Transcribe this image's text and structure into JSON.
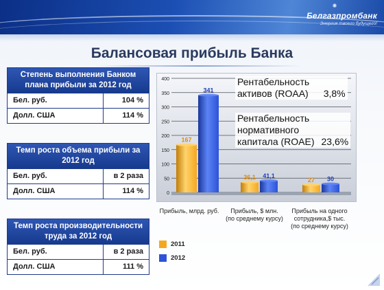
{
  "header": {
    "logo_name": "Белгазпромбанк",
    "logo_tagline": "Энергия твоего будущего!"
  },
  "title": "Балансовая прибыль Банка",
  "tables": [
    {
      "heading": "Степень выполнения Банком плана прибыли за 2012 год",
      "rows": [
        {
          "label": "Бел. руб.",
          "value": "104 %"
        },
        {
          "label": "Долл. США",
          "value": "114 %"
        }
      ]
    },
    {
      "heading": "Темп роста объема прибыли за 2012 год",
      "rows": [
        {
          "label": "Бел. руб.",
          "value": "в 2 раза"
        },
        {
          "label": "Долл. США",
          "value": "114 %"
        }
      ]
    },
    {
      "heading": "Темп роста производительности труда за 2012 год",
      "rows": [
        {
          "label": "Бел. руб.",
          "value": "в 2 раза"
        },
        {
          "label": "Долл. США",
          "value": "111 %"
        }
      ]
    }
  ],
  "annotations": {
    "roaa_line1": "Рентабельность",
    "roaa_line2": "активов (ROAA)",
    "roaa_value": "3,8%",
    "roae_line1": "Рентабельность",
    "roae_line2": "нормативного",
    "roae_line3": "капитала (ROAE)",
    "roae_value": "23,6%"
  },
  "chart_data": {
    "type": "bar",
    "title": "",
    "ylim": [
      0,
      400
    ],
    "yticks": [
      0,
      50,
      100,
      150,
      200,
      250,
      300,
      350,
      400
    ],
    "grid": true,
    "categories": [
      "Прибыль, млрд. руб.",
      "Прибыль, $ млн. (по среднему курсу)",
      "Прибыль на одного сотрудника,$ тыс. (по среднему курсу)"
    ],
    "category_lines": [
      [
        "Прибыль, млрд. руб."
      ],
      [
        "Прибыль, $ млн.",
        "(по среднему курсу)"
      ],
      [
        "Прибыль на одного",
        "сотрудника,$ тыс.",
        "(по среднему курсу)"
      ]
    ],
    "series": [
      {
        "name": "2011",
        "values": [
          167,
          36.1,
          27
        ],
        "labels": [
          "167",
          "36,1",
          "27"
        ],
        "color": "#f5a81f"
      },
      {
        "name": "2012",
        "values": [
          341,
          41.1,
          30
        ],
        "labels": [
          "341",
          "41,1",
          "30"
        ],
        "color": "#2c53d8"
      }
    ],
    "legend_position": "bottom-left"
  }
}
